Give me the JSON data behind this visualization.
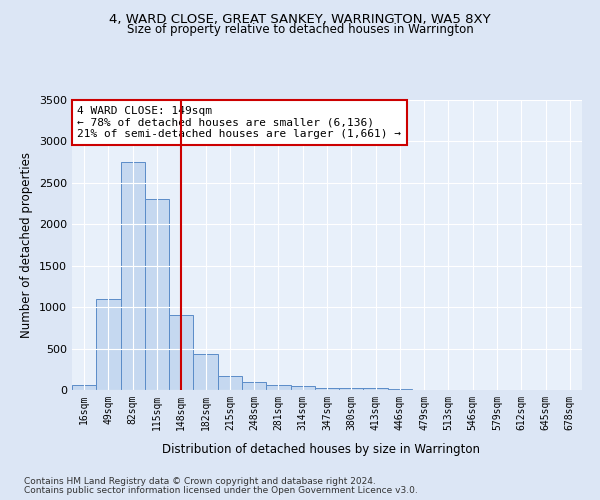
{
  "title1": "4, WARD CLOSE, GREAT SANKEY, WARRINGTON, WA5 8XY",
  "title2": "Size of property relative to detached houses in Warrington",
  "xlabel": "Distribution of detached houses by size in Warrington",
  "ylabel": "Number of detached properties",
  "categories": [
    "16sqm",
    "49sqm",
    "82sqm",
    "115sqm",
    "148sqm",
    "182sqm",
    "215sqm",
    "248sqm",
    "281sqm",
    "314sqm",
    "347sqm",
    "380sqm",
    "413sqm",
    "446sqm",
    "479sqm",
    "513sqm",
    "546sqm",
    "579sqm",
    "612sqm",
    "645sqm",
    "678sqm"
  ],
  "values": [
    55,
    1100,
    2750,
    2300,
    900,
    430,
    170,
    100,
    55,
    45,
    30,
    20,
    25,
    8,
    3,
    2,
    1,
    1,
    0,
    0,
    0
  ],
  "bar_color": "#c5d8f0",
  "bar_edge_color": "#5b8cc8",
  "vline_x": 4,
  "vline_color": "#cc0000",
  "annotation_text": "4 WARD CLOSE: 149sqm\n← 78% of detached houses are smaller (6,136)\n21% of semi-detached houses are larger (1,661) →",
  "annotation_box_color": "#ffffff",
  "annotation_box_edge_color": "#cc0000",
  "ylim": [
    0,
    3500
  ],
  "yticks": [
    0,
    500,
    1000,
    1500,
    2000,
    2500,
    3000,
    3500
  ],
  "footer1": "Contains HM Land Registry data © Crown copyright and database right 2024.",
  "footer2": "Contains public sector information licensed under the Open Government Licence v3.0.",
  "bg_color": "#dce6f5",
  "plot_bg_color": "#e8f0fa",
  "grid_color": "#ffffff"
}
